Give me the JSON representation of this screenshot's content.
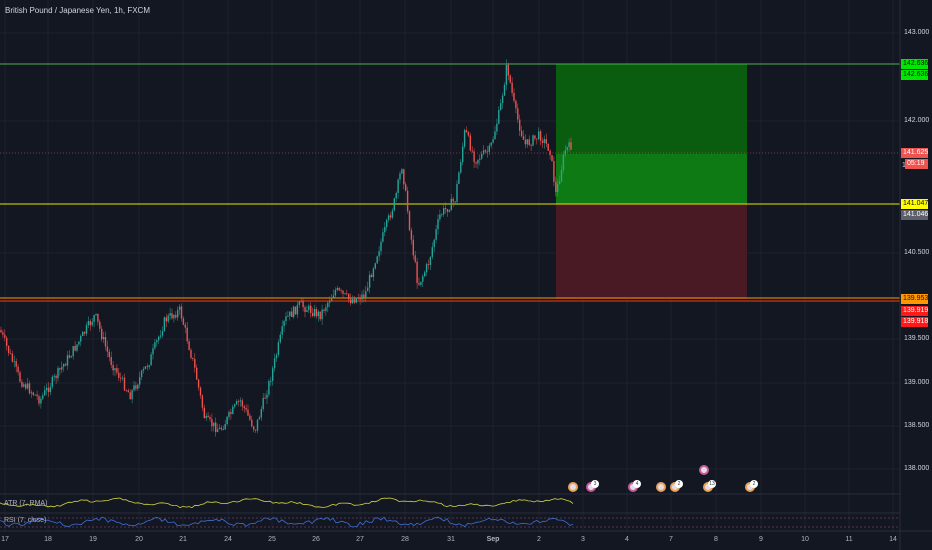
{
  "app": {
    "title": "British Pound / Japanese Yen, 1h, FXCM"
  },
  "colors": {
    "background": "#131722",
    "up_candle": "#26a69a",
    "down_candle": "#ef5350",
    "target_zone": "#0a5c0f",
    "target_zone_inner": "#0d7a14",
    "stop_zone": "#4a1a24",
    "green_line": "#4caf50",
    "yellow_line": "#e6e600",
    "red_line": "#ff3d00",
    "atr_line": "#d6d63c",
    "rsi_line": "#3f6fd6"
  },
  "price_axis": {
    "ticks": [
      "143.000",
      "142.000",
      "140.500",
      "139.500",
      "139.000",
      "138.500",
      "138.000"
    ],
    "partial_label": "14"
  },
  "price_tags": {
    "top_green_1": "142.636",
    "top_green_2": "142.636",
    "current_price": "141.625",
    "countdown": "05:19",
    "entry_yellow": "141.047",
    "entry_gray": "141.046",
    "orange_level": "139.953",
    "red_1": "139.919",
    "red_2": "139.918"
  },
  "time_axis": [
    "17",
    "18",
    "19",
    "20",
    "21",
    "24",
    "25",
    "26",
    "27",
    "28",
    "31",
    "Sep",
    "2",
    "3",
    "4",
    "7",
    "8",
    "9",
    "10",
    "11",
    "14"
  ],
  "indicators": {
    "atr_label": "ATR (7, RMA)",
    "rsi_label": "RSI (7, close)"
  },
  "events": [
    {
      "type": "orange"
    },
    {
      "type": "pink",
      "badge": "3"
    },
    {
      "type": "pink",
      "badge": "4"
    },
    {
      "type": "orange"
    },
    {
      "type": "orange",
      "badge": "2"
    },
    {
      "type": "pink"
    },
    {
      "type": "orange",
      "badge": "13"
    },
    {
      "type": "orange",
      "badge": "2"
    }
  ]
}
